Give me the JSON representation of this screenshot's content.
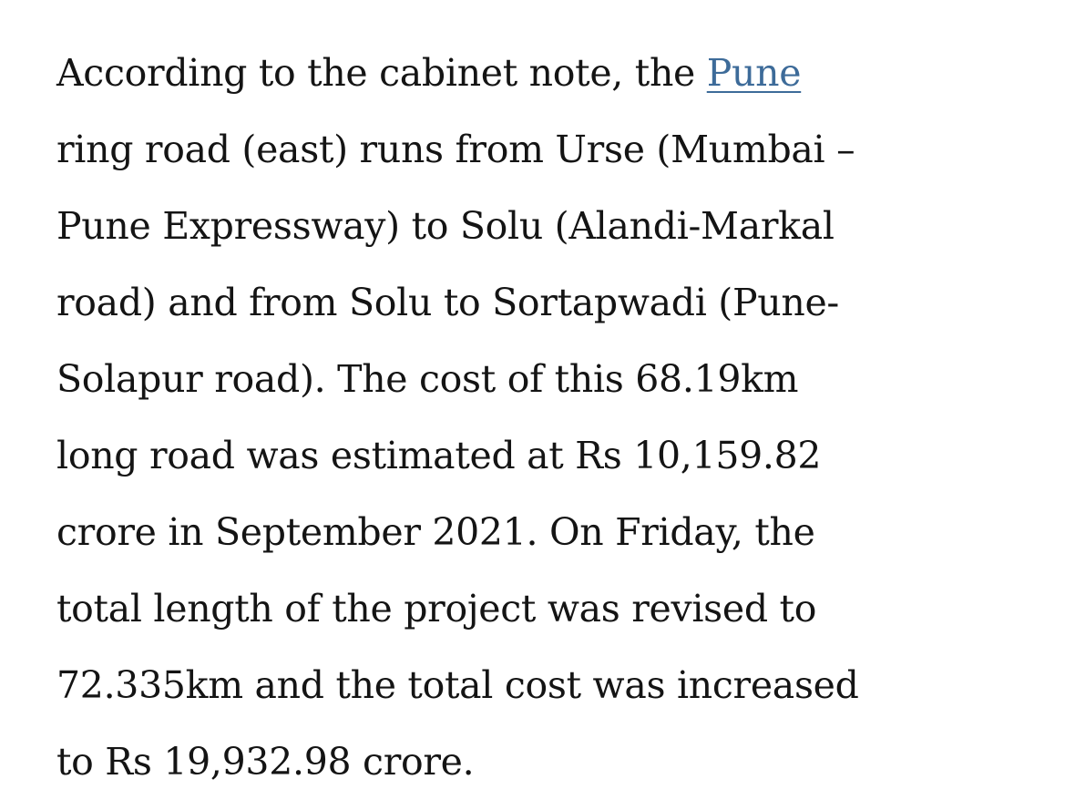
{
  "article": {
    "first_line": {
      "text": "According to the cabinet note, the ",
      "link": "Pune"
    },
    "lines": [
      "ring road (east) runs from Urse (Mumbai –",
      "Pune Expressway) to Solu (Alandi-Markal",
      "road) and from Solu to Sortapwadi (Pune-",
      "Solapur road). The cost of this 68.19km",
      "long road was estimated at Rs 10,159.82",
      "crore in September 2021. On Friday, the",
      "total length of the project was revised to",
      "72.335km and the total cost was increased",
      "to Rs 19,932.98 crore."
    ]
  }
}
